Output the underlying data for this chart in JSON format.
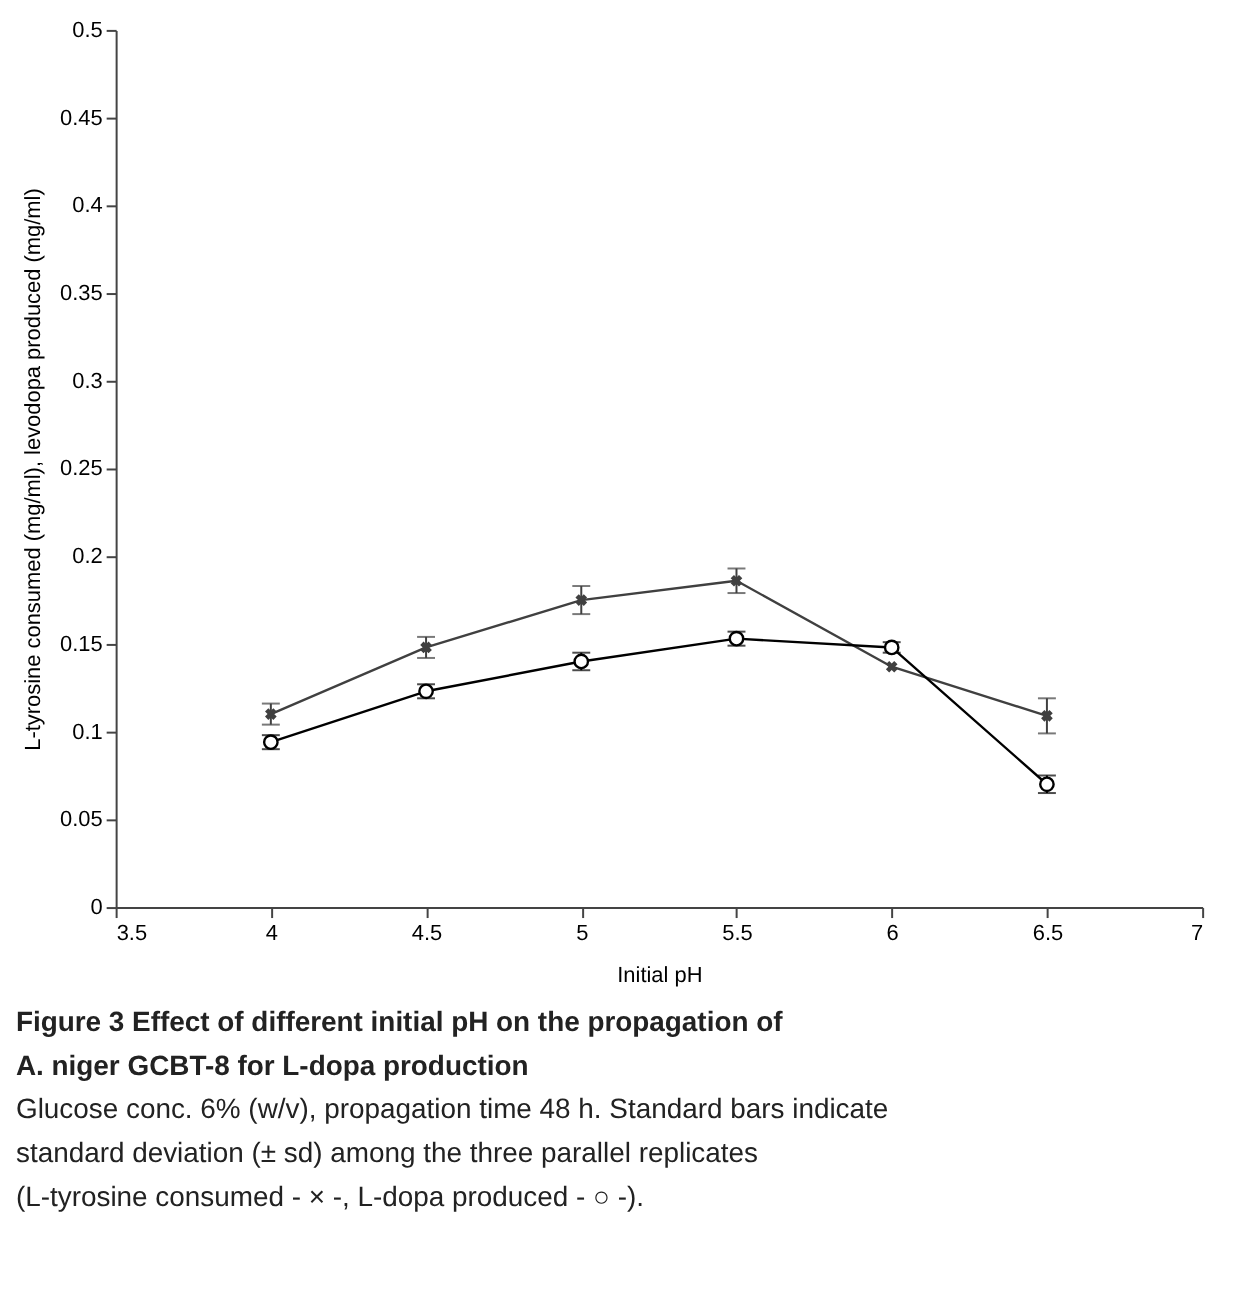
{
  "chart_data": {
    "type": "line",
    "title": "Figure 3 Effect of different initial pH on the propagation of A. niger GCBT-8 for L-dopa production",
    "xlabel": "Initial pH",
    "ylabel": "L-tyrosine consumed (mg/ml), levodopa produced (mg/ml)",
    "x": [
      4,
      4.5,
      5,
      5.5,
      6,
      6.5
    ],
    "series": [
      {
        "color": "#404040",
        "marker": "cross",
        "values": [
          0.11,
          0.148,
          0.175,
          0.186,
          0.137,
          0.109
        ],
        "errors": [
          0.006,
          0.006,
          0.008,
          0.007,
          null,
          0.01
        ]
      },
      {
        "color": "#000000",
        "marker": "circle",
        "values": [
          0.094,
          0.123,
          0.14,
          0.153,
          0.148,
          0.07
        ],
        "errors": [
          0.004,
          0.004,
          0.005,
          0.004,
          0.003,
          0.005
        ]
      }
    ],
    "xlim": [
      3.5,
      7
    ],
    "xticks": [
      3.5,
      4,
      4.5,
      5,
      5.5,
      6,
      6.5,
      7
    ],
    "ylim": [
      0,
      0.5
    ],
    "yticks": [
      0,
      0.05,
      0.1,
      0.15,
      0.2,
      0.25,
      0.3,
      0.35,
      0.4,
      0.45,
      0.5
    ],
    "grid": false,
    "annotations": [
      "Glucose conc. 6% (w/v), propagation time 48 h. Standard bars indicate standard deviation (± sd) among the three parallel replicates (L-tyrosine consumed - × -, L-dopa produced - ○ -)."
    ]
  }
}
